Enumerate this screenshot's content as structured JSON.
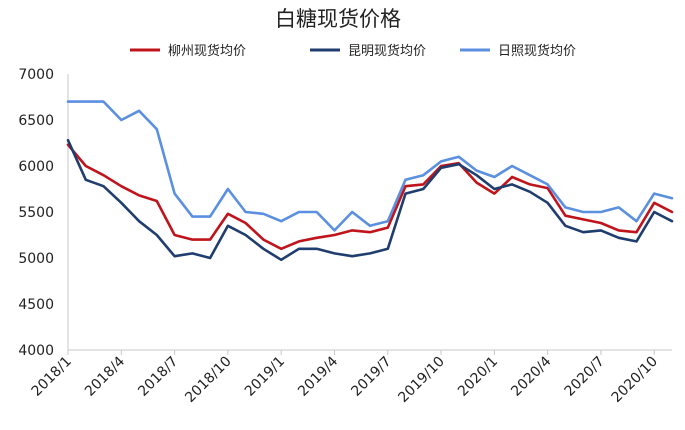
{
  "chart_data": {
    "type": "line",
    "title": "白糖现货价格",
    "xlabel": "",
    "ylabel": "",
    "ylim": [
      4000,
      7000
    ],
    "yticks": [
      4000,
      4500,
      5000,
      5500,
      6000,
      6500,
      7000
    ],
    "x_tick_labels": [
      "2018/1",
      "2018/4",
      "2018/7",
      "2018/10",
      "2019/1",
      "2019/4",
      "2019/7",
      "2019/10",
      "2020/1",
      "2020/4",
      "2020/7",
      "2020/10"
    ],
    "x": [
      "2018/1",
      "2018/2",
      "2018/3",
      "2018/4",
      "2018/5",
      "2018/6",
      "2018/7",
      "2018/8",
      "2018/9",
      "2018/10",
      "2018/11",
      "2018/12",
      "2019/1",
      "2019/2",
      "2019/3",
      "2019/4",
      "2019/5",
      "2019/6",
      "2019/7",
      "2019/8",
      "2019/9",
      "2019/10",
      "2019/11",
      "2019/12",
      "2020/1",
      "2020/2",
      "2020/3",
      "2020/4",
      "2020/5",
      "2020/6",
      "2020/7",
      "2020/8",
      "2020/9",
      "2020/10",
      "2020/11"
    ],
    "grid": false,
    "legend_position": "top",
    "series": [
      {
        "name": "柳州现货均价",
        "color": "#c0141c",
        "values": [
          6230,
          6000,
          5900,
          5780,
          5680,
          5620,
          5250,
          5200,
          5200,
          5480,
          5380,
          5200,
          5100,
          5180,
          5220,
          5250,
          5300,
          5280,
          5330,
          5780,
          5800,
          6000,
          6030,
          5820,
          5700,
          5880,
          5800,
          5760,
          5460,
          5420,
          5380,
          5300,
          5280,
          5600,
          5500
        ]
      },
      {
        "name": "昆明现货均价",
        "color": "#1f3d6e",
        "values": [
          6280,
          5850,
          5780,
          5600,
          5400,
          5250,
          5020,
          5050,
          5000,
          5350,
          5250,
          5100,
          4980,
          5100,
          5100,
          5050,
          5020,
          5050,
          5100,
          5700,
          5750,
          5980,
          6020,
          5900,
          5750,
          5800,
          5720,
          5600,
          5350,
          5280,
          5300,
          5220,
          5180,
          5500,
          5400
        ]
      },
      {
        "name": "日照现货均价",
        "color": "#5b8fe0",
        "values": [
          6700,
          6700,
          6700,
          6500,
          6600,
          6400,
          5700,
          5450,
          5450,
          5750,
          5500,
          5480,
          5400,
          5500,
          5500,
          5300,
          5500,
          5350,
          5400,
          5850,
          5900,
          6050,
          6100,
          5950,
          5880,
          6000,
          5900,
          5800,
          5550,
          5500,
          5500,
          5550,
          5400,
          5700,
          5650
        ]
      }
    ]
  }
}
